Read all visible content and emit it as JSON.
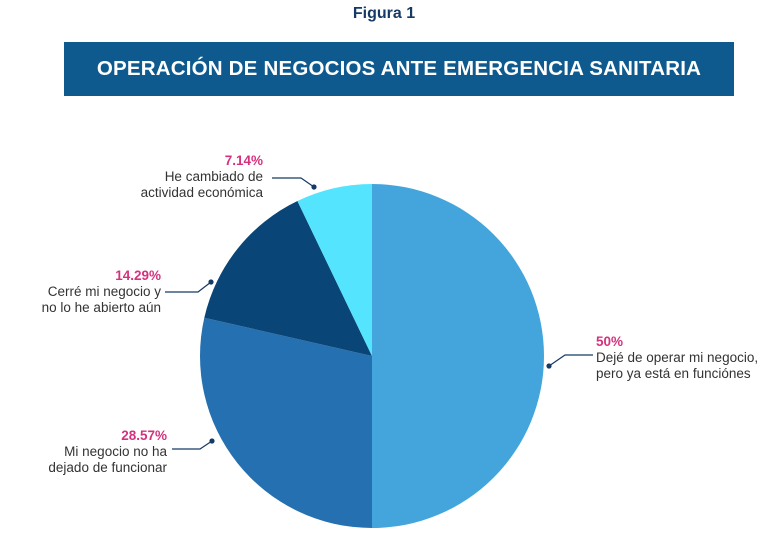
{
  "figure_label": "Figura 1",
  "chart_data": {
    "type": "pie",
    "title": "OPERACIÓN DE NEGOCIOS ANTE EMERGENCIA SANITARIA",
    "unit": "%",
    "slices": [
      {
        "label_lines": [
          "Dejé de operar mi negocio,",
          "pero ya está en funciónes"
        ],
        "value": 50,
        "value_label": "50%",
        "color": "#43a5dc"
      },
      {
        "label_lines": [
          "Mi negocio no ha",
          "dejado de funcionar"
        ],
        "value": 28.57,
        "value_label": "28.57%",
        "color": "#2570b0"
      },
      {
        "label_lines": [
          "Cerré mi negocio y",
          "no lo he abierto aún"
        ],
        "value": 14.29,
        "value_label": "14.29%",
        "color": "#0a4577"
      },
      {
        "label_lines": [
          "He cambiado de",
          "actividad económica"
        ],
        "value": 7.14,
        "value_label": "7.14%",
        "color": "#55e4fd"
      }
    ],
    "start_angle": "12 o'clock",
    "direction": "clockwise"
  },
  "colors": {
    "banner": "#0e5a8e",
    "percent_text": "#d6317e",
    "leader_line": "#163a66"
  }
}
